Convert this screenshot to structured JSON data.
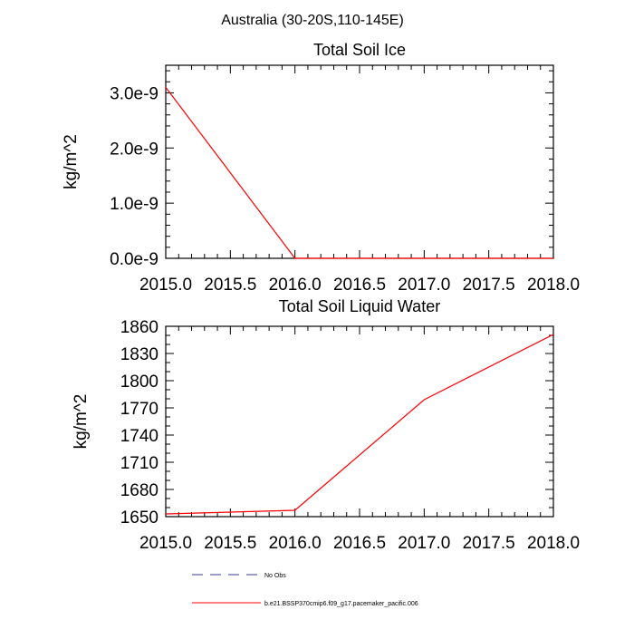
{
  "figure": {
    "title": "Australia (30-20S,110-145E)"
  },
  "chart_data": [
    {
      "type": "line",
      "title": "Total Soil Ice",
      "xlabel": "",
      "ylabel": "kg/m^2",
      "xlim": [
        2015.0,
        2018.0
      ],
      "ylim": [
        0,
        3.5e-09
      ],
      "x_ticks": [
        2015.0,
        2015.5,
        2016.0,
        2016.5,
        2017.0,
        2017.5,
        2018.0
      ],
      "x_tick_labels": [
        "2015.0",
        "2015.5",
        "2016.0",
        "2016.5",
        "2017.0",
        "2017.5",
        "2018.0"
      ],
      "y_ticks": [
        0,
        1e-09,
        2e-09,
        3e-09
      ],
      "y_tick_labels": [
        "0.0e-9",
        "1.0e-9",
        "2.0e-9",
        "3.0e-9"
      ],
      "grid": false,
      "series": [
        {
          "name": "b.e21.BSSP370cmip6.f09_g17.pacemaker_pacific.006",
          "color": "#ff0000",
          "x": [
            2015.0,
            2016.0,
            2017.0,
            2018.0
          ],
          "values": [
            3.1e-09,
            0,
            0,
            0
          ]
        }
      ]
    },
    {
      "type": "line",
      "title": "Total Soil Liquid Water",
      "xlabel": "",
      "ylabel": "kg/m^2",
      "xlim": [
        2015.0,
        2018.0
      ],
      "ylim": [
        1650,
        1860
      ],
      "x_ticks": [
        2015.0,
        2015.5,
        2016.0,
        2016.5,
        2017.0,
        2017.5,
        2018.0
      ],
      "x_tick_labels": [
        "2015.0",
        "2015.5",
        "2016.0",
        "2016.5",
        "2017.0",
        "2017.5",
        "2018.0"
      ],
      "y_ticks": [
        1650,
        1680,
        1710,
        1740,
        1770,
        1800,
        1830,
        1860
      ],
      "y_tick_labels": [
        "1650",
        "1680",
        "1710",
        "1740",
        "1770",
        "1800",
        "1830",
        "1860"
      ],
      "grid": false,
      "series": [
        {
          "name": "b.e21.BSSP370cmip6.f09_g17.pacemaker_pacific.006",
          "color": "#ff0000",
          "x": [
            2015.0,
            2016.0,
            2017.0,
            2018.0
          ],
          "values": [
            1653,
            1657,
            1779,
            1851
          ]
        }
      ]
    }
  ],
  "legend": {
    "position": "bottom",
    "entries": [
      {
        "label": "No Obs",
        "color": "#3b3b9b",
        "style": "dashed"
      },
      {
        "label": "b.e21.BSSP370cmip6.f09_g17.pacemaker_pacific.006",
        "color": "#ff0000",
        "style": "solid"
      }
    ]
  }
}
